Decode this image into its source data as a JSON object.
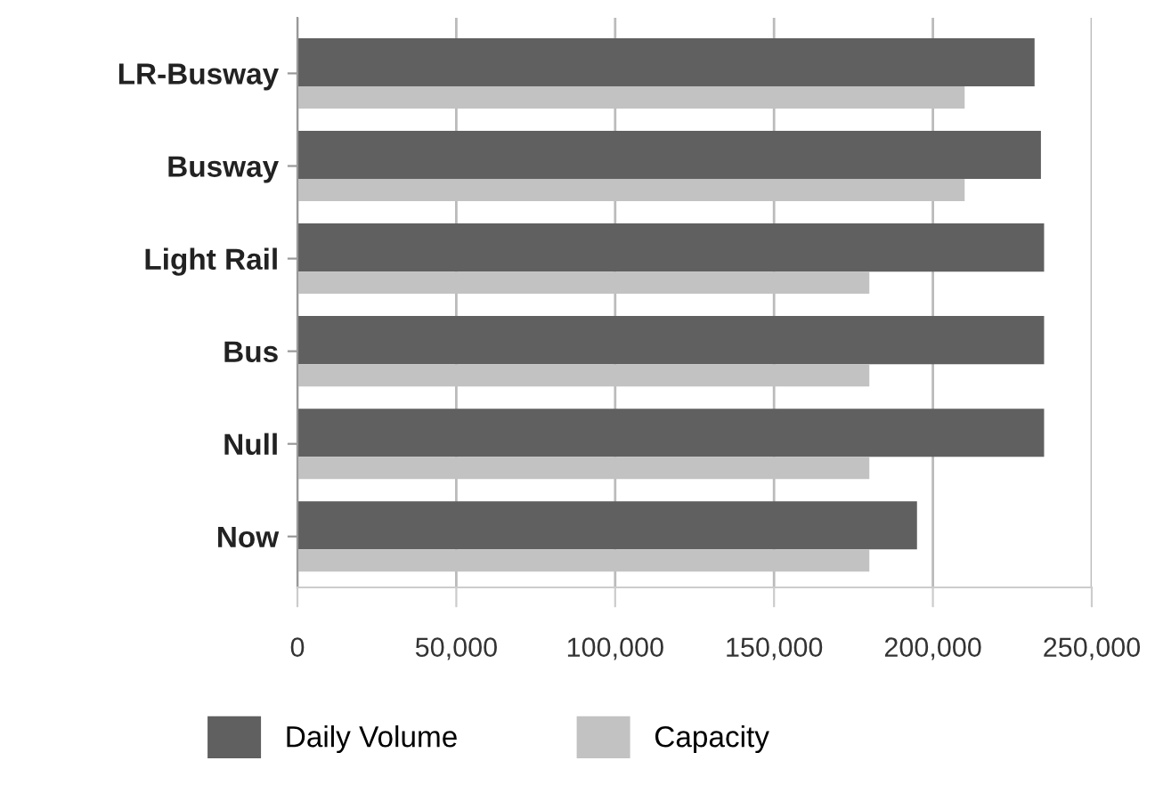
{
  "chart_data": {
    "type": "bar",
    "orientation": "horizontal",
    "categories": [
      "LR-Busway",
      "Busway",
      "Light Rail",
      "Bus",
      "Null",
      "Now"
    ],
    "series": [
      {
        "name": "Daily Volume",
        "color": "#606060",
        "values": [
          232000,
          234000,
          235000,
          235000,
          235000,
          195000
        ]
      },
      {
        "name": "Capacity",
        "color": "#c2c2c2",
        "values": [
          210000,
          210000,
          180000,
          180000,
          180000,
          180000
        ]
      }
    ],
    "xlim": [
      0,
      250000
    ],
    "xticks": [
      {
        "value": 0,
        "label": "0"
      },
      {
        "value": 50000,
        "label": "50,000"
      },
      {
        "value": 100000,
        "label": "100,000"
      },
      {
        "value": 150000,
        "label": "150,000"
      },
      {
        "value": 200000,
        "label": "200,000"
      },
      {
        "value": 250000,
        "label": "250,000"
      }
    ],
    "grid": "x",
    "legend": "bottom"
  }
}
